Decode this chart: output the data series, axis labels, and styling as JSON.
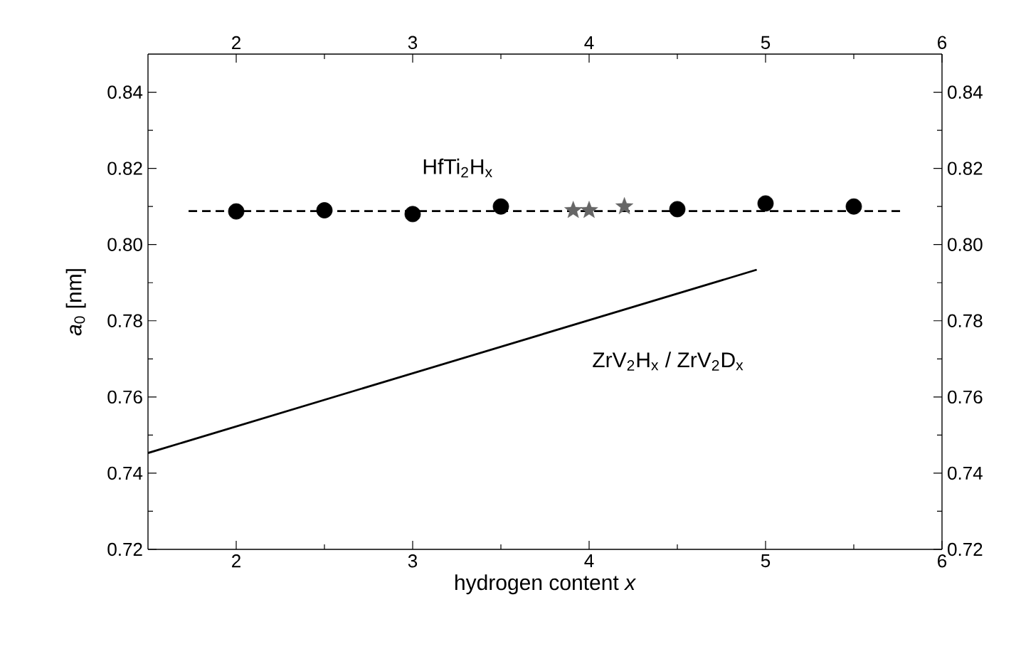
{
  "chart_data": {
    "type": "scatter",
    "xlabel": "hydrogen content *x*",
    "ylabel": "*a*$_{0}$ [nm]",
    "xlim": [
      1.5,
      6
    ],
    "xticks": [
      2,
      3,
      4,
      5,
      6
    ],
    "ylim": [
      0.72,
      0.85
    ],
    "yticks": [
      0.72,
      0.74,
      0.76,
      0.78,
      {
        "value": 0.8,
        "label": "0.80"
      },
      0.82,
      0.84
    ],
    "x2lim": [
      1.5,
      6
    ],
    "x2ticks": [
      2,
      3,
      4,
      5,
      6
    ],
    "y2lim": [
      0.72,
      0.85
    ],
    "y2ticks": [
      0.72,
      0.74,
      0.76,
      0.78,
      {
        "value": 0.8,
        "label": "0.80"
      },
      0.82,
      0.84
    ],
    "series": [
      {
        "type": "line",
        "color": "#000000",
        "line_style": "dashed",
        "marker": "none",
        "x": [
          1.73,
          5.78
        ],
        "values": [
          0.8088,
          0.8088
        ]
      },
      {
        "type": "line",
        "color": "#000000",
        "line_style": "solid",
        "marker": "none",
        "x": [
          1.5,
          4.95
        ],
        "values": [
          0.7453,
          0.7934
        ]
      },
      {
        "type": "scatter",
        "color": "#000000",
        "marker": "circle",
        "x": [
          2,
          2.5,
          3,
          3.5,
          4.5,
          5,
          5.5
        ],
        "values": [
          0.8087,
          0.809,
          0.808,
          0.81,
          0.8093,
          0.8108,
          0.81
        ]
      },
      {
        "type": "scatter",
        "color": "#666666",
        "marker": "star",
        "x": [
          3.91,
          4.0,
          4.2
        ],
        "values": [
          0.809,
          0.809,
          0.81
        ]
      }
    ],
    "annotations": [
      "HfTi$_{2}$H$_{x}$",
      "ZrV$_{2}$H$_{x}$ / ZrV$_{2}$D$_{x}$"
    ]
  }
}
